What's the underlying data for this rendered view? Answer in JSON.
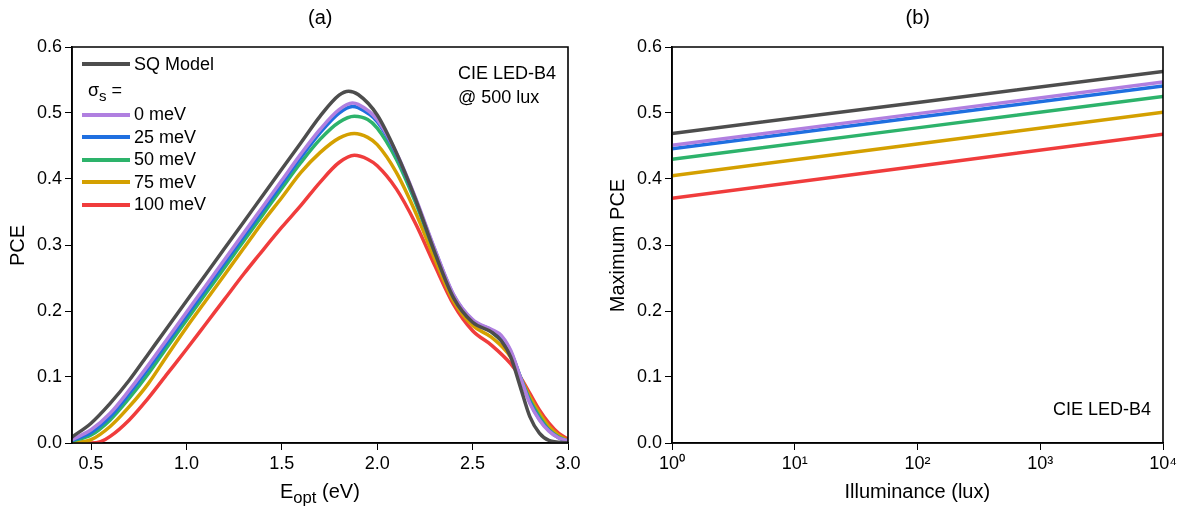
{
  "chart_data": [
    {
      "type": "line",
      "title": "(a)",
      "xlabel": "E$_{opt}$ (eV)",
      "ylabel": "PCE",
      "legend_title": "σ$_{s}$ =",
      "legend": "top left",
      "annotations": [
        "CIE LED-B4\n@ 500 lux"
      ],
      "xlim": [
        0.4,
        3.0
      ],
      "xticks": [
        0.5,
        {
          "value": 1,
          "label": "1.0"
        },
        1.5,
        {
          "value": 2,
          "label": "2.0"
        },
        2.5,
        {
          "value": 3,
          "label": "3.0"
        }
      ],
      "ylim": [
        0,
        0.6
      ],
      "yticks": [
        {
          "value": 0,
          "label": "0.0"
        },
        0.1,
        0.2,
        0.3,
        0.4,
        0.5,
        0.6
      ],
      "line_style": "solid",
      "marker": "none",
      "series": [
        {
          "name": "SQ Model",
          "color": "#4d4d4d",
          "x": [
            0.4,
            0.5,
            0.6,
            0.7,
            0.8,
            0.9,
            1.0,
            1.1,
            1.2,
            1.3,
            1.4,
            1.5,
            1.6,
            1.7,
            1.8,
            1.85,
            1.9,
            2.0,
            2.1,
            2.2,
            2.3,
            2.4,
            2.5,
            2.6,
            2.65,
            2.7,
            2.75,
            2.8,
            2.85,
            2.9,
            3.0
          ],
          "values": [
            0.009,
            0.03,
            0.06,
            0.095,
            0.135,
            0.175,
            0.215,
            0.255,
            0.295,
            0.335,
            0.375,
            0.415,
            0.455,
            0.495,
            0.527,
            0.533,
            0.528,
            0.497,
            0.44,
            0.37,
            0.29,
            0.22,
            0.183,
            0.168,
            0.155,
            0.13,
            0.085,
            0.04,
            0.015,
            0.004,
            0
          ]
        },
        {
          "name": "0 meV",
          "color": "#b07fe0",
          "x": [
            0.4,
            0.5,
            0.6,
            0.7,
            0.8,
            0.9,
            1.0,
            1.1,
            1.2,
            1.3,
            1.4,
            1.5,
            1.6,
            1.7,
            1.8,
            1.87,
            1.9,
            2.0,
            2.1,
            2.2,
            2.3,
            2.4,
            2.5,
            2.6,
            2.65,
            2.7,
            2.75,
            2.8,
            2.85,
            2.9,
            2.95,
            3.0
          ],
          "values": [
            0.005,
            0.02,
            0.045,
            0.08,
            0.118,
            0.158,
            0.198,
            0.238,
            0.278,
            0.318,
            0.358,
            0.398,
            0.438,
            0.475,
            0.505,
            0.515,
            0.513,
            0.49,
            0.44,
            0.372,
            0.295,
            0.225,
            0.187,
            0.172,
            0.163,
            0.14,
            0.1,
            0.06,
            0.035,
            0.018,
            0.008,
            0.003
          ]
        },
        {
          "name": "25 meV",
          "color": "#1f6fe0",
          "x": [
            0.4,
            0.5,
            0.6,
            0.7,
            0.8,
            0.9,
            1.0,
            1.1,
            1.2,
            1.3,
            1.4,
            1.5,
            1.6,
            1.7,
            1.8,
            1.87,
            1.9,
            2.0,
            2.1,
            2.2,
            2.3,
            2.4,
            2.5,
            2.6,
            2.65,
            2.7,
            2.75,
            2.8,
            2.85,
            2.9,
            2.95,
            3.0
          ],
          "values": [
            0.004,
            0.016,
            0.04,
            0.075,
            0.113,
            0.153,
            0.193,
            0.233,
            0.273,
            0.313,
            0.353,
            0.393,
            0.433,
            0.47,
            0.5,
            0.51,
            0.508,
            0.487,
            0.438,
            0.37,
            0.294,
            0.224,
            0.186,
            0.171,
            0.161,
            0.138,
            0.1,
            0.062,
            0.036,
            0.019,
            0.008,
            0.003
          ]
        },
        {
          "name": "50 meV",
          "color": "#2db36b",
          "x": [
            0.4,
            0.5,
            0.6,
            0.7,
            0.8,
            0.9,
            1.0,
            1.1,
            1.2,
            1.3,
            1.4,
            1.5,
            1.6,
            1.7,
            1.8,
            1.88,
            1.95,
            2.0,
            2.1,
            2.2,
            2.3,
            2.4,
            2.5,
            2.6,
            2.7,
            2.75,
            2.8,
            2.85,
            2.9,
            2.95,
            3.0
          ],
          "values": [
            0.003,
            0.012,
            0.035,
            0.068,
            0.105,
            0.146,
            0.186,
            0.226,
            0.266,
            0.306,
            0.346,
            0.386,
            0.425,
            0.46,
            0.486,
            0.495,
            0.49,
            0.477,
            0.43,
            0.365,
            0.29,
            0.222,
            0.185,
            0.168,
            0.137,
            0.1,
            0.065,
            0.04,
            0.02,
            0.009,
            0.003
          ]
        },
        {
          "name": "75 meV",
          "color": "#d4a000",
          "x": [
            0.4,
            0.5,
            0.6,
            0.7,
            0.8,
            0.9,
            1.0,
            1.1,
            1.2,
            1.3,
            1.4,
            1.5,
            1.6,
            1.7,
            1.8,
            1.88,
            1.95,
            2.0,
            2.1,
            2.2,
            2.3,
            2.4,
            2.5,
            2.6,
            2.7,
            2.75,
            2.8,
            2.85,
            2.9,
            2.95,
            3.0
          ],
          "values": [
            0,
            0.005,
            0.025,
            0.055,
            0.09,
            0.133,
            0.175,
            0.215,
            0.255,
            0.295,
            0.335,
            0.372,
            0.41,
            0.44,
            0.462,
            0.469,
            0.463,
            0.452,
            0.41,
            0.35,
            0.28,
            0.215,
            0.178,
            0.16,
            0.13,
            0.1,
            0.07,
            0.045,
            0.025,
            0.012,
            0.004
          ]
        },
        {
          "name": "100 meV",
          "color": "#f03c3c",
          "x": [
            0.4,
            0.5,
            0.55,
            0.6,
            0.7,
            0.8,
            0.9,
            1.0,
            1.1,
            1.2,
            1.3,
            1.4,
            1.5,
            1.6,
            1.7,
            1.8,
            1.88,
            1.95,
            2.0,
            2.1,
            2.2,
            2.3,
            2.4,
            2.5,
            2.6,
            2.7,
            2.75,
            2.8,
            2.85,
            2.9,
            2.95,
            3.0
          ],
          "values": [
            0,
            0,
            0.002,
            0.01,
            0.035,
            0.068,
            0.105,
            0.142,
            0.18,
            0.218,
            0.256,
            0.292,
            0.327,
            0.36,
            0.395,
            0.425,
            0.436,
            0.43,
            0.42,
            0.385,
            0.333,
            0.27,
            0.21,
            0.17,
            0.148,
            0.12,
            0.1,
            0.075,
            0.05,
            0.03,
            0.015,
            0.006
          ]
        }
      ]
    },
    {
      "type": "line",
      "title": "(b)",
      "xlabel": "Illuminance (lux)",
      "ylabel": "Maximum PCE",
      "annotations": [
        "CIE LED-B4"
      ],
      "log": "x",
      "xlim": [
        1,
        10000
      ],
      "xticks": [
        {
          "value": 1,
          "label": "10⁰"
        },
        {
          "value": 10,
          "label": "10¹"
        },
        {
          "value": 100,
          "label": "10²"
        },
        {
          "value": 1000,
          "label": "10³"
        },
        {
          "value": 10000,
          "label": "10⁴"
        }
      ],
      "ylim": [
        0,
        0.6
      ],
      "yticks": [
        {
          "value": 0,
          "label": "0.0"
        },
        0.1,
        0.2,
        0.3,
        0.4,
        0.5,
        0.6
      ],
      "line_style": "solid",
      "marker": "none",
      "series": [
        {
          "color": "#4d4d4d",
          "x": [
            1,
            10000
          ],
          "values": [
            0.469,
            0.563
          ]
        },
        {
          "color": "#b07fe0",
          "x": [
            1,
            10000
          ],
          "values": [
            0.451,
            0.547
          ]
        },
        {
          "color": "#1f6fe0",
          "x": [
            1,
            10000
          ],
          "values": [
            0.446,
            0.541
          ]
        },
        {
          "color": "#2db36b",
          "x": [
            1,
            10000
          ],
          "values": [
            0.43,
            0.525
          ]
        },
        {
          "color": "#d4a000",
          "x": [
            1,
            10000
          ],
          "values": [
            0.405,
            0.501
          ]
        },
        {
          "color": "#f03c3c",
          "x": [
            1,
            10000
          ],
          "values": [
            0.371,
            0.468
          ]
        }
      ]
    }
  ]
}
